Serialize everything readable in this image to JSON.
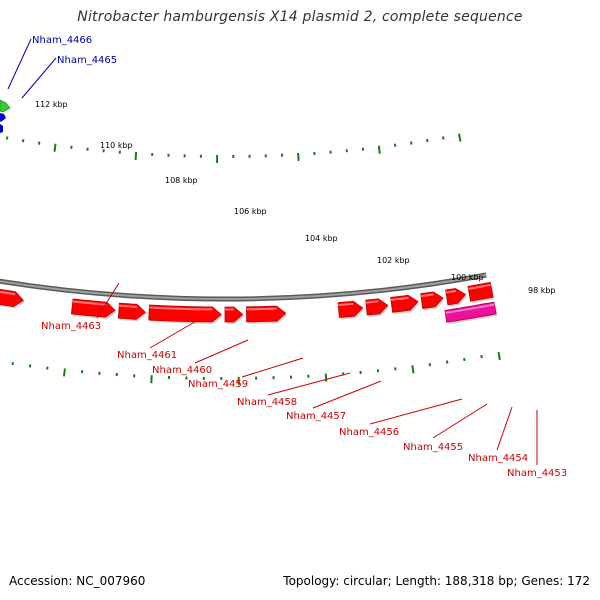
{
  "title": "Nitrobacter hamburgensis X14 plasmid 2, complete sequence",
  "footer": {
    "accession": "Accession: NC_007960",
    "summary": "Topology: circular; Length: 188,318 bp; Genes: 172"
  },
  "colors": {
    "forward_gene": "#ff0000",
    "reverse_gene": "#ff0000",
    "green_gene": "#33cc33",
    "blue_gene": "#0000cc",
    "magenta_gene": "#ee1199",
    "grey_gene": "#b0b0b0",
    "backbone": "#808080",
    "tick": "#1a7a1a",
    "red_label": "#cc0000",
    "blue_label": "#0000aa"
  },
  "scale_ticks": [
    "112 kbp",
    "110 kbp",
    "108 kbp",
    "106 kbp",
    "104 kbp",
    "102 kbp",
    "100 kbp",
    "98 kbp"
  ],
  "gene_labels": [
    {
      "name": "Nham_4466",
      "color": "blue"
    },
    {
      "name": "Nham_4465",
      "color": "blue"
    },
    {
      "name": "Nham_4463",
      "color": "red"
    },
    {
      "name": "Nham_4461",
      "color": "red"
    },
    {
      "name": "Nham_4460",
      "color": "red"
    },
    {
      "name": "Nham_4459",
      "color": "red"
    },
    {
      "name": "Nham_4458",
      "color": "red"
    },
    {
      "name": "Nham_4457",
      "color": "red"
    },
    {
      "name": "Nham_4456",
      "color": "red"
    },
    {
      "name": "Nham_4455",
      "color": "red"
    },
    {
      "name": "Nham_4454",
      "color": "red"
    },
    {
      "name": "Nham_4453",
      "color": "red"
    }
  ]
}
